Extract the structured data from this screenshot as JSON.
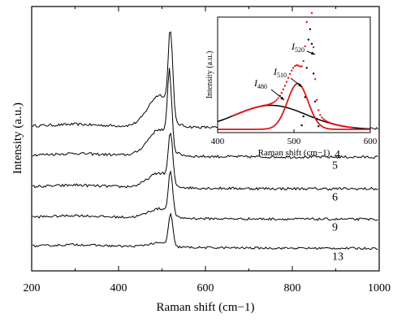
{
  "chart_data": [
    {
      "type": "line",
      "xlabel": "Raman shift (cm−1)",
      "ylabel": "Intensity (a.u.)",
      "xlim": [
        200,
        1000
      ],
      "xticks": [
        200,
        400,
        600,
        800,
        1000
      ],
      "yticks_shown": false,
      "grid": false,
      "legend": "none",
      "series_style": "stacked offset spectra, black lines",
      "series": [
        {
          "name": "4",
          "baseline": 5.4,
          "peak_x": 520,
          "peak_height": 3.3,
          "shoulder_height": 1.2,
          "noise": 0.1
        },
        {
          "name": "5",
          "baseline": 4.3,
          "peak_x": 518,
          "peak_height": 2.7,
          "shoulder_height": 1.0,
          "noise": 0.1
        },
        {
          "name": "6",
          "baseline": 3.1,
          "peak_x": 520,
          "peak_height": 1.9,
          "shoulder_height": 0.55,
          "noise": 0.1
        },
        {
          "name": "9",
          "baseline": 1.95,
          "peak_x": 520,
          "peak_height": 1.65,
          "shoulder_height": 0.35,
          "noise": 0.09
        },
        {
          "name": "13",
          "baseline": 0.85,
          "peak_x": 520,
          "peak_height": 1.2,
          "shoulder_height": 0.15,
          "noise": 0.08
        }
      ]
    },
    {
      "type": "line",
      "xlabel": "Raman shift (cm−1)",
      "ylabel": "Intensity (a.u.)",
      "xlim": [
        400,
        600
      ],
      "xticks": [
        400,
        500,
        600
      ],
      "grid": false,
      "annotations": [
        {
          "label": "I480",
          "base": "I",
          "sub": "480"
        },
        {
          "label": "I510",
          "base": "I",
          "sub": "510"
        },
        {
          "label": "I520",
          "base": "I",
          "sub": "520"
        }
      ],
      "series": [
        {
          "component": "I480",
          "center": 470,
          "fwhm": 110,
          "amplitude": 0.22,
          "style": "black solid"
        },
        {
          "component": "I510",
          "center": 505,
          "fwhm": 32,
          "amplitude": 0.42,
          "style": "red solid"
        },
        {
          "component": "I520",
          "center": 521,
          "fwhm": 10,
          "amplitude": 0.92,
          "style": "black dotted"
        },
        {
          "component": "sum",
          "style": "red dotted"
        }
      ]
    }
  ]
}
